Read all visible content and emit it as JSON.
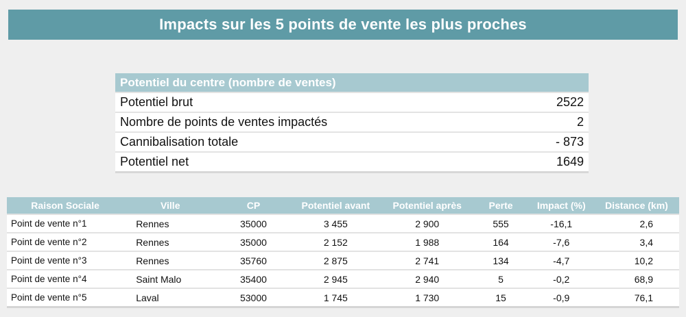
{
  "title": "Impacts sur les 5 points de vente les plus proches",
  "summary": {
    "header": "Potentiel du centre (nombre de ventes)",
    "rows": [
      {
        "label": "Potentiel brut",
        "value": "2522"
      },
      {
        "label": "Nombre de points de ventes impactés",
        "value": "2"
      },
      {
        "label": "Cannibalisation totale",
        "value": "- 873"
      },
      {
        "label": "Potentiel net",
        "value": "1649"
      }
    ]
  },
  "detail": {
    "columns": [
      "Raison Sociale",
      "Ville",
      "CP",
      "Potentiel avant",
      "Potentiel après",
      "Perte",
      "Impact (%)",
      "Distance (km)"
    ],
    "rows": [
      [
        "Point de vente n°1",
        "Rennes",
        "35000",
        "3 455",
        "2 900",
        "555",
        "-16,1",
        "2,6"
      ],
      [
        "Point de vente n°2",
        "Rennes",
        "35000",
        "2 152",
        "1 988",
        "164",
        "-7,6",
        "3,4"
      ],
      [
        "Point de vente n°3",
        "Rennes",
        "35760",
        "2 875",
        "2 741",
        "134",
        "-4,7",
        "10,2"
      ],
      [
        "Point de vente n°4",
        "Saint Malo",
        "35400",
        "2 945",
        "2 940",
        "5",
        "-0,2",
        "68,9"
      ],
      [
        "Point de vente n°5",
        "Laval",
        "53000",
        "1 745",
        "1 730",
        "15",
        "-0,9",
        "76,1"
      ]
    ]
  },
  "colors": {
    "banner": "#5f9ba6",
    "header": "#a7c9d0"
  }
}
